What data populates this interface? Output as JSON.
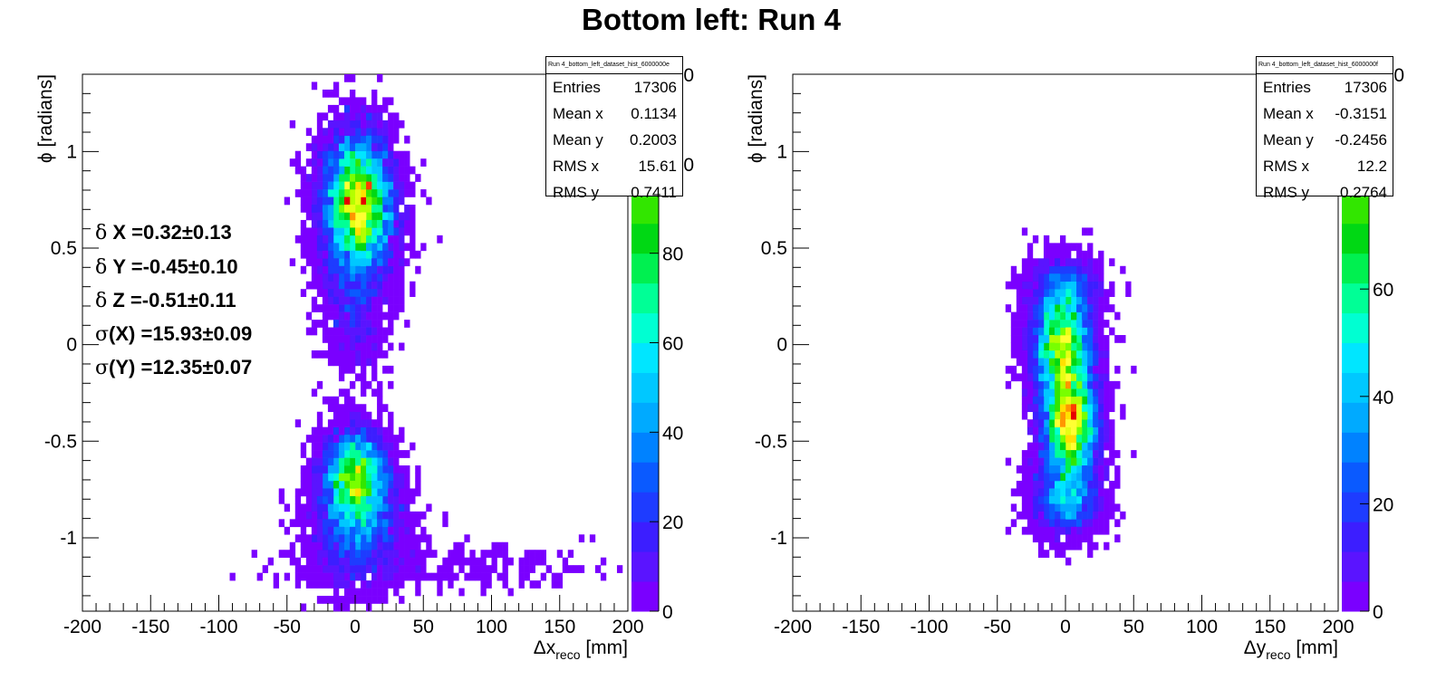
{
  "title": "Bottom left: Run 4",
  "colors": {
    "palette": [
      "#7a00ff",
      "#5a14ff",
      "#3c1eff",
      "#1e3cff",
      "#0a5aff",
      "#0082ff",
      "#00aaff",
      "#00c8ff",
      "#00e6ff",
      "#00ffd2",
      "#00ff96",
      "#00f050",
      "#00d814",
      "#32e600",
      "#78ff00",
      "#b4ff00",
      "#e6ff14",
      "#ffff32"
    ],
    "hot": [
      "#ffe000",
      "#ff9600",
      "#ff3c00",
      "#e60000"
    ]
  },
  "annotations": {
    "dx": {
      "sym": "δ",
      "text": " X =0.32±0.13"
    },
    "dy": {
      "sym": "δ",
      "text": " Y =-0.45±0.10"
    },
    "dz": {
      "sym": "δ",
      "text": " Z =-0.51±0.11"
    },
    "sx": {
      "sym": "σ",
      "text": "(X) =15.93±0.09"
    },
    "sy": {
      "sym": "σ",
      "text": "(Y) =12.35±0.07"
    }
  },
  "stats": [
    {
      "name": "Run 4_bottom_left_dataset_hist_6000000e",
      "rows": [
        [
          "Entries",
          "17306"
        ],
        [
          "Mean x",
          "0.1134"
        ],
        [
          "Mean y",
          "0.2003"
        ],
        [
          "RMS x",
          "15.61"
        ],
        [
          "RMS y",
          "0.7411"
        ]
      ]
    },
    {
      "name": "Run 4_bottom_left_dataset_hist_6000000f",
      "rows": [
        [
          "Entries",
          "17306"
        ],
        [
          "Mean x",
          "-0.3151"
        ],
        [
          "Mean y",
          "-0.2456"
        ],
        [
          "RMS x",
          "12.2"
        ],
        [
          "RMS y",
          "0.2764"
        ]
      ]
    }
  ],
  "chart_data": [
    {
      "type": "heatmap",
      "xlabel_main": "Δx",
      "xlabel_sub": "reco",
      "xlabel_unit": " [mm]",
      "ylabel": "ϕ [radians]",
      "xlim": [
        -200,
        200
      ],
      "ylim": [
        -1.38,
        1.4
      ],
      "x_ticks": [
        "-200",
        "-150",
        "-100",
        "-50",
        "0",
        "50",
        "100",
        "150",
        "200"
      ],
      "y_ticks": [
        "-1",
        "-0.5",
        "0",
        "0.5",
        "1"
      ],
      "z_ticks": [
        "0",
        "20",
        "40",
        "60",
        "80",
        "100",
        "120"
      ],
      "zlim": [
        0,
        120
      ],
      "clusters": [
        {
          "x": 2,
          "y": 0.72,
          "sx": 14,
          "sy": 0.2,
          "peak": 100,
          "n": 9000
        },
        {
          "x": 0,
          "y": -0.68,
          "sx": 13,
          "sy": 0.13,
          "peak": 90,
          "n": 4200
        },
        {
          "x": 2,
          "y": -0.95,
          "sx": 18,
          "sy": 0.15,
          "peak": 40,
          "n": 2600
        },
        {
          "x": 0,
          "y": 0.2,
          "sx": 12,
          "sy": 0.18,
          "peak": 20,
          "n": 800
        },
        {
          "x": 60,
          "y": -1.15,
          "sx": 55,
          "sy": 0.06,
          "peak": 8,
          "n": 250
        }
      ]
    },
    {
      "type": "heatmap",
      "xlabel_main": "Δy",
      "xlabel_sub": "reco",
      "xlabel_unit": " [mm]",
      "ylabel": "ϕ [radians]",
      "xlim": [
        -200,
        200
      ],
      "ylim": [
        -1.38,
        1.4
      ],
      "x_ticks": [
        "-200",
        "-150",
        "-100",
        "-50",
        "0",
        "50",
        "100",
        "150",
        "200"
      ],
      "y_ticks": [
        "-1",
        "-0.5",
        "0",
        "0.5",
        "1"
      ],
      "z_ticks": [
        "0",
        "20",
        "40",
        "60",
        "80",
        "100"
      ],
      "zlim": [
        0,
        100
      ],
      "clusters": [
        {
          "x": 3,
          "y": -0.4,
          "sx": 11,
          "sy": 0.17,
          "peak": 95,
          "n": 8000
        },
        {
          "x": -3,
          "y": 0.0,
          "sx": 12,
          "sy": 0.14,
          "peak": 70,
          "n": 5500
        },
        {
          "x": 0,
          "y": 0.28,
          "sx": 13,
          "sy": 0.09,
          "peak": 30,
          "n": 1500
        },
        {
          "x": 0,
          "y": -0.8,
          "sx": 13,
          "sy": 0.1,
          "peak": 35,
          "n": 2000
        }
      ]
    }
  ]
}
